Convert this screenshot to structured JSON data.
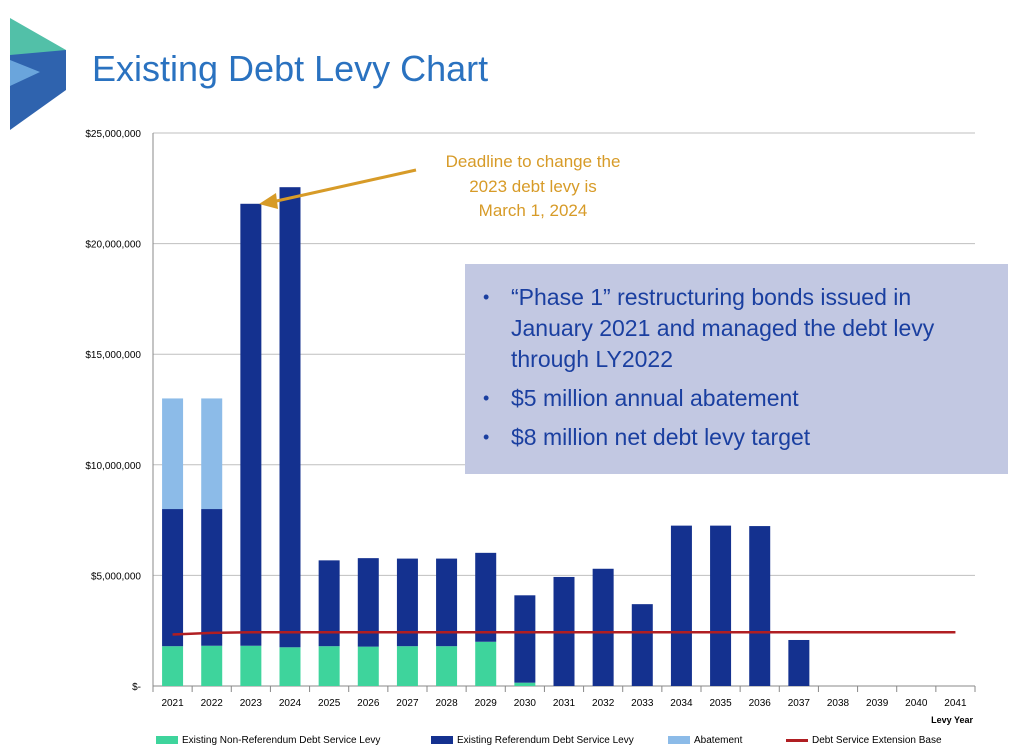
{
  "title": "Existing Debt Levy Chart",
  "colors": {
    "non_referendum": "#3ed49c",
    "referendum": "#14318f",
    "abatement": "#8cbbe8",
    "extension_base": "#b01e22",
    "annotation": "#d79b28"
  },
  "callout": {
    "items": [
      "“Phase 1” restructuring bonds issued in January 2021 and managed the debt levy through LY2022",
      "$5 million annual abatement",
      "$8 million net debt levy target"
    ]
  },
  "annotation": {
    "lines": [
      "Deadline to change the",
      "2023 debt levy is",
      "March 1, 2024"
    ]
  },
  "legend": [
    {
      "label": "Existing Non-Referendum Debt Service Levy",
      "kind": "box",
      "color": "#3ed49c"
    },
    {
      "label": "Existing Referendum Debt Service Levy",
      "kind": "box",
      "color": "#14318f"
    },
    {
      "label": "Abatement",
      "kind": "box",
      "color": "#8cbbe8"
    },
    {
      "label": "Debt Service Extension Base",
      "kind": "line",
      "color": "#b01e22"
    }
  ],
  "chart_data": {
    "type": "bar",
    "stacked": true,
    "categories": [
      "2021",
      "2022",
      "2023",
      "2024",
      "2025",
      "2026",
      "2027",
      "2028",
      "2029",
      "2030",
      "2031",
      "2032",
      "2033",
      "2034",
      "2035",
      "2036",
      "2037",
      "2038",
      "2039",
      "2040",
      "2041"
    ],
    "series": [
      {
        "name": "Existing Non-Referendum Debt Service Levy",
        "values": [
          1800000,
          1820000,
          1820000,
          1750000,
          1800000,
          1780000,
          1800000,
          1800000,
          2000000,
          150000,
          0,
          0,
          0,
          0,
          0,
          0,
          0,
          0,
          0,
          0,
          0
        ]
      },
      {
        "name": "Existing Referendum Debt Service Levy",
        "values": [
          6200000,
          6180000,
          19980000,
          20800000,
          3880000,
          4000000,
          3960000,
          3960000,
          4020000,
          3950000,
          4930000,
          5300000,
          3700000,
          7250000,
          7250000,
          7230000,
          2080000,
          0,
          0,
          0,
          0
        ]
      },
      {
        "name": "Abatement",
        "values": [
          5000000,
          5000000,
          0,
          0,
          0,
          0,
          0,
          0,
          0,
          0,
          0,
          0,
          0,
          0,
          0,
          0,
          0,
          0,
          0,
          0,
          0
        ]
      }
    ],
    "line_series": {
      "name": "Debt Service Extension Base",
      "values": [
        2330000,
        2400000,
        2430000,
        2430000,
        2430000,
        2430000,
        2430000,
        2430000,
        2430000,
        2430000,
        2430000,
        2430000,
        2430000,
        2430000,
        2430000,
        2430000,
        2430000,
        2430000,
        2430000,
        2430000,
        2430000
      ]
    },
    "y_ticks": [
      "$-",
      "$5,000,000",
      "$10,000,000",
      "$15,000,000",
      "$20,000,000",
      "$25,000,000"
    ],
    "ylim": [
      0,
      25000000
    ],
    "xlabel": "Levy Year",
    "ylabel": "",
    "grid": true,
    "legend_position": "bottom"
  }
}
